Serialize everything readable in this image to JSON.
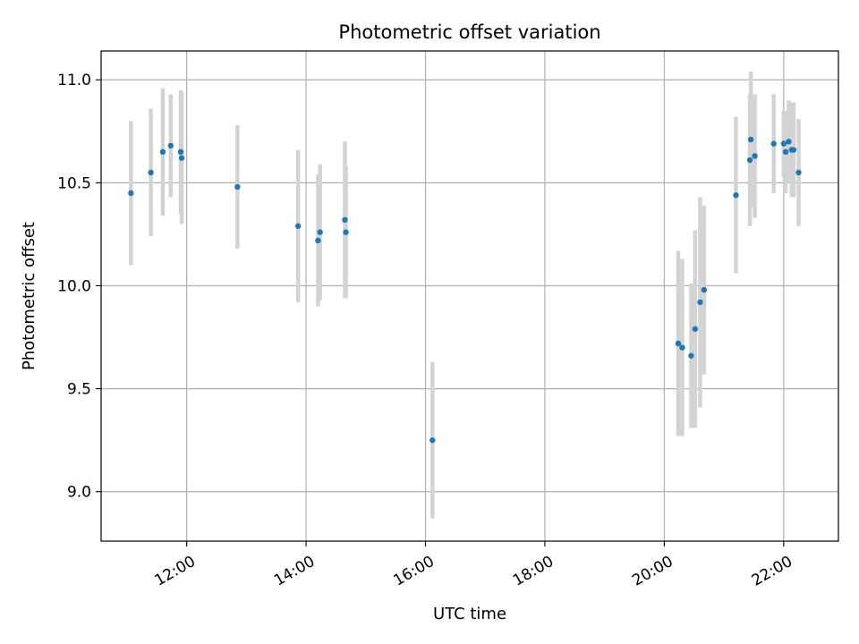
{
  "chart_data": {
    "type": "scatter",
    "title": "Photometric offset variation",
    "xlabel": "UTC time",
    "ylabel": "Photometric offset",
    "x_unit": "time of day (HH:MM)",
    "xlim": [
      "10:34",
      "22:55"
    ],
    "ylim": [
      8.76,
      11.14
    ],
    "x_ticks": [
      "12:00",
      "14:00",
      "16:00",
      "18:00",
      "20:00",
      "22:00"
    ],
    "y_ticks": [
      9.0,
      9.5,
      10.0,
      10.5,
      11.0
    ],
    "y_tick_labels": [
      "9.0",
      "9.5",
      "10.0",
      "10.5",
      "11.0"
    ],
    "grid": true,
    "colors": {
      "points": "#1f77b4",
      "error_bars": "#d3d3d3",
      "grid": "#b0b0b0"
    },
    "points": [
      {
        "x": "11:04",
        "y": 10.45,
        "yerr": 0.35
      },
      {
        "x": "11:24",
        "y": 10.55,
        "yerr": 0.31
      },
      {
        "x": "11:36",
        "y": 10.65,
        "yerr": 0.31
      },
      {
        "x": "11:44",
        "y": 10.68,
        "yerr": 0.25
      },
      {
        "x": "11:54",
        "y": 10.65,
        "yerr": 0.3
      },
      {
        "x": "11:55",
        "y": 10.62,
        "yerr": 0.32
      },
      {
        "x": "12:51",
        "y": 10.48,
        "yerr": 0.3
      },
      {
        "x": "13:52",
        "y": 10.29,
        "yerr": 0.37
      },
      {
        "x": "14:12",
        "y": 10.22,
        "yerr": 0.32
      },
      {
        "x": "14:14",
        "y": 10.26,
        "yerr": 0.33
      },
      {
        "x": "14:39",
        "y": 10.32,
        "yerr": 0.38
      },
      {
        "x": "14:40",
        "y": 10.26,
        "yerr": 0.32
      },
      {
        "x": "16:07",
        "y": 9.25,
        "yerr": 0.38
      },
      {
        "x": "20:14",
        "y": 9.72,
        "yerr": 0.45
      },
      {
        "x": "20:18",
        "y": 9.7,
        "yerr": 0.43
      },
      {
        "x": "20:27",
        "y": 9.66,
        "yerr": 0.35
      },
      {
        "x": "20:31",
        "y": 9.79,
        "yerr": 0.48
      },
      {
        "x": "20:36",
        "y": 9.92,
        "yerr": 0.51
      },
      {
        "x": "20:40",
        "y": 9.98,
        "yerr": 0.41
      },
      {
        "x": "21:12",
        "y": 10.44,
        "yerr": 0.38
      },
      {
        "x": "21:26",
        "y": 10.61,
        "yerr": 0.32
      },
      {
        "x": "21:27",
        "y": 10.71,
        "yerr": 0.33
      },
      {
        "x": "21:31",
        "y": 10.63,
        "yerr": 0.3
      },
      {
        "x": "21:50",
        "y": 10.69,
        "yerr": 0.24
      },
      {
        "x": "22:00",
        "y": 10.69,
        "yerr": 0.16
      },
      {
        "x": "22:02",
        "y": 10.65,
        "yerr": 0.2
      },
      {
        "x": "22:05",
        "y": 10.7,
        "yerr": 0.2
      },
      {
        "x": "22:08",
        "y": 10.66,
        "yerr": 0.23
      },
      {
        "x": "22:10",
        "y": 10.66,
        "yerr": 0.23
      },
      {
        "x": "22:15",
        "y": 10.55,
        "yerr": 0.26
      }
    ]
  }
}
